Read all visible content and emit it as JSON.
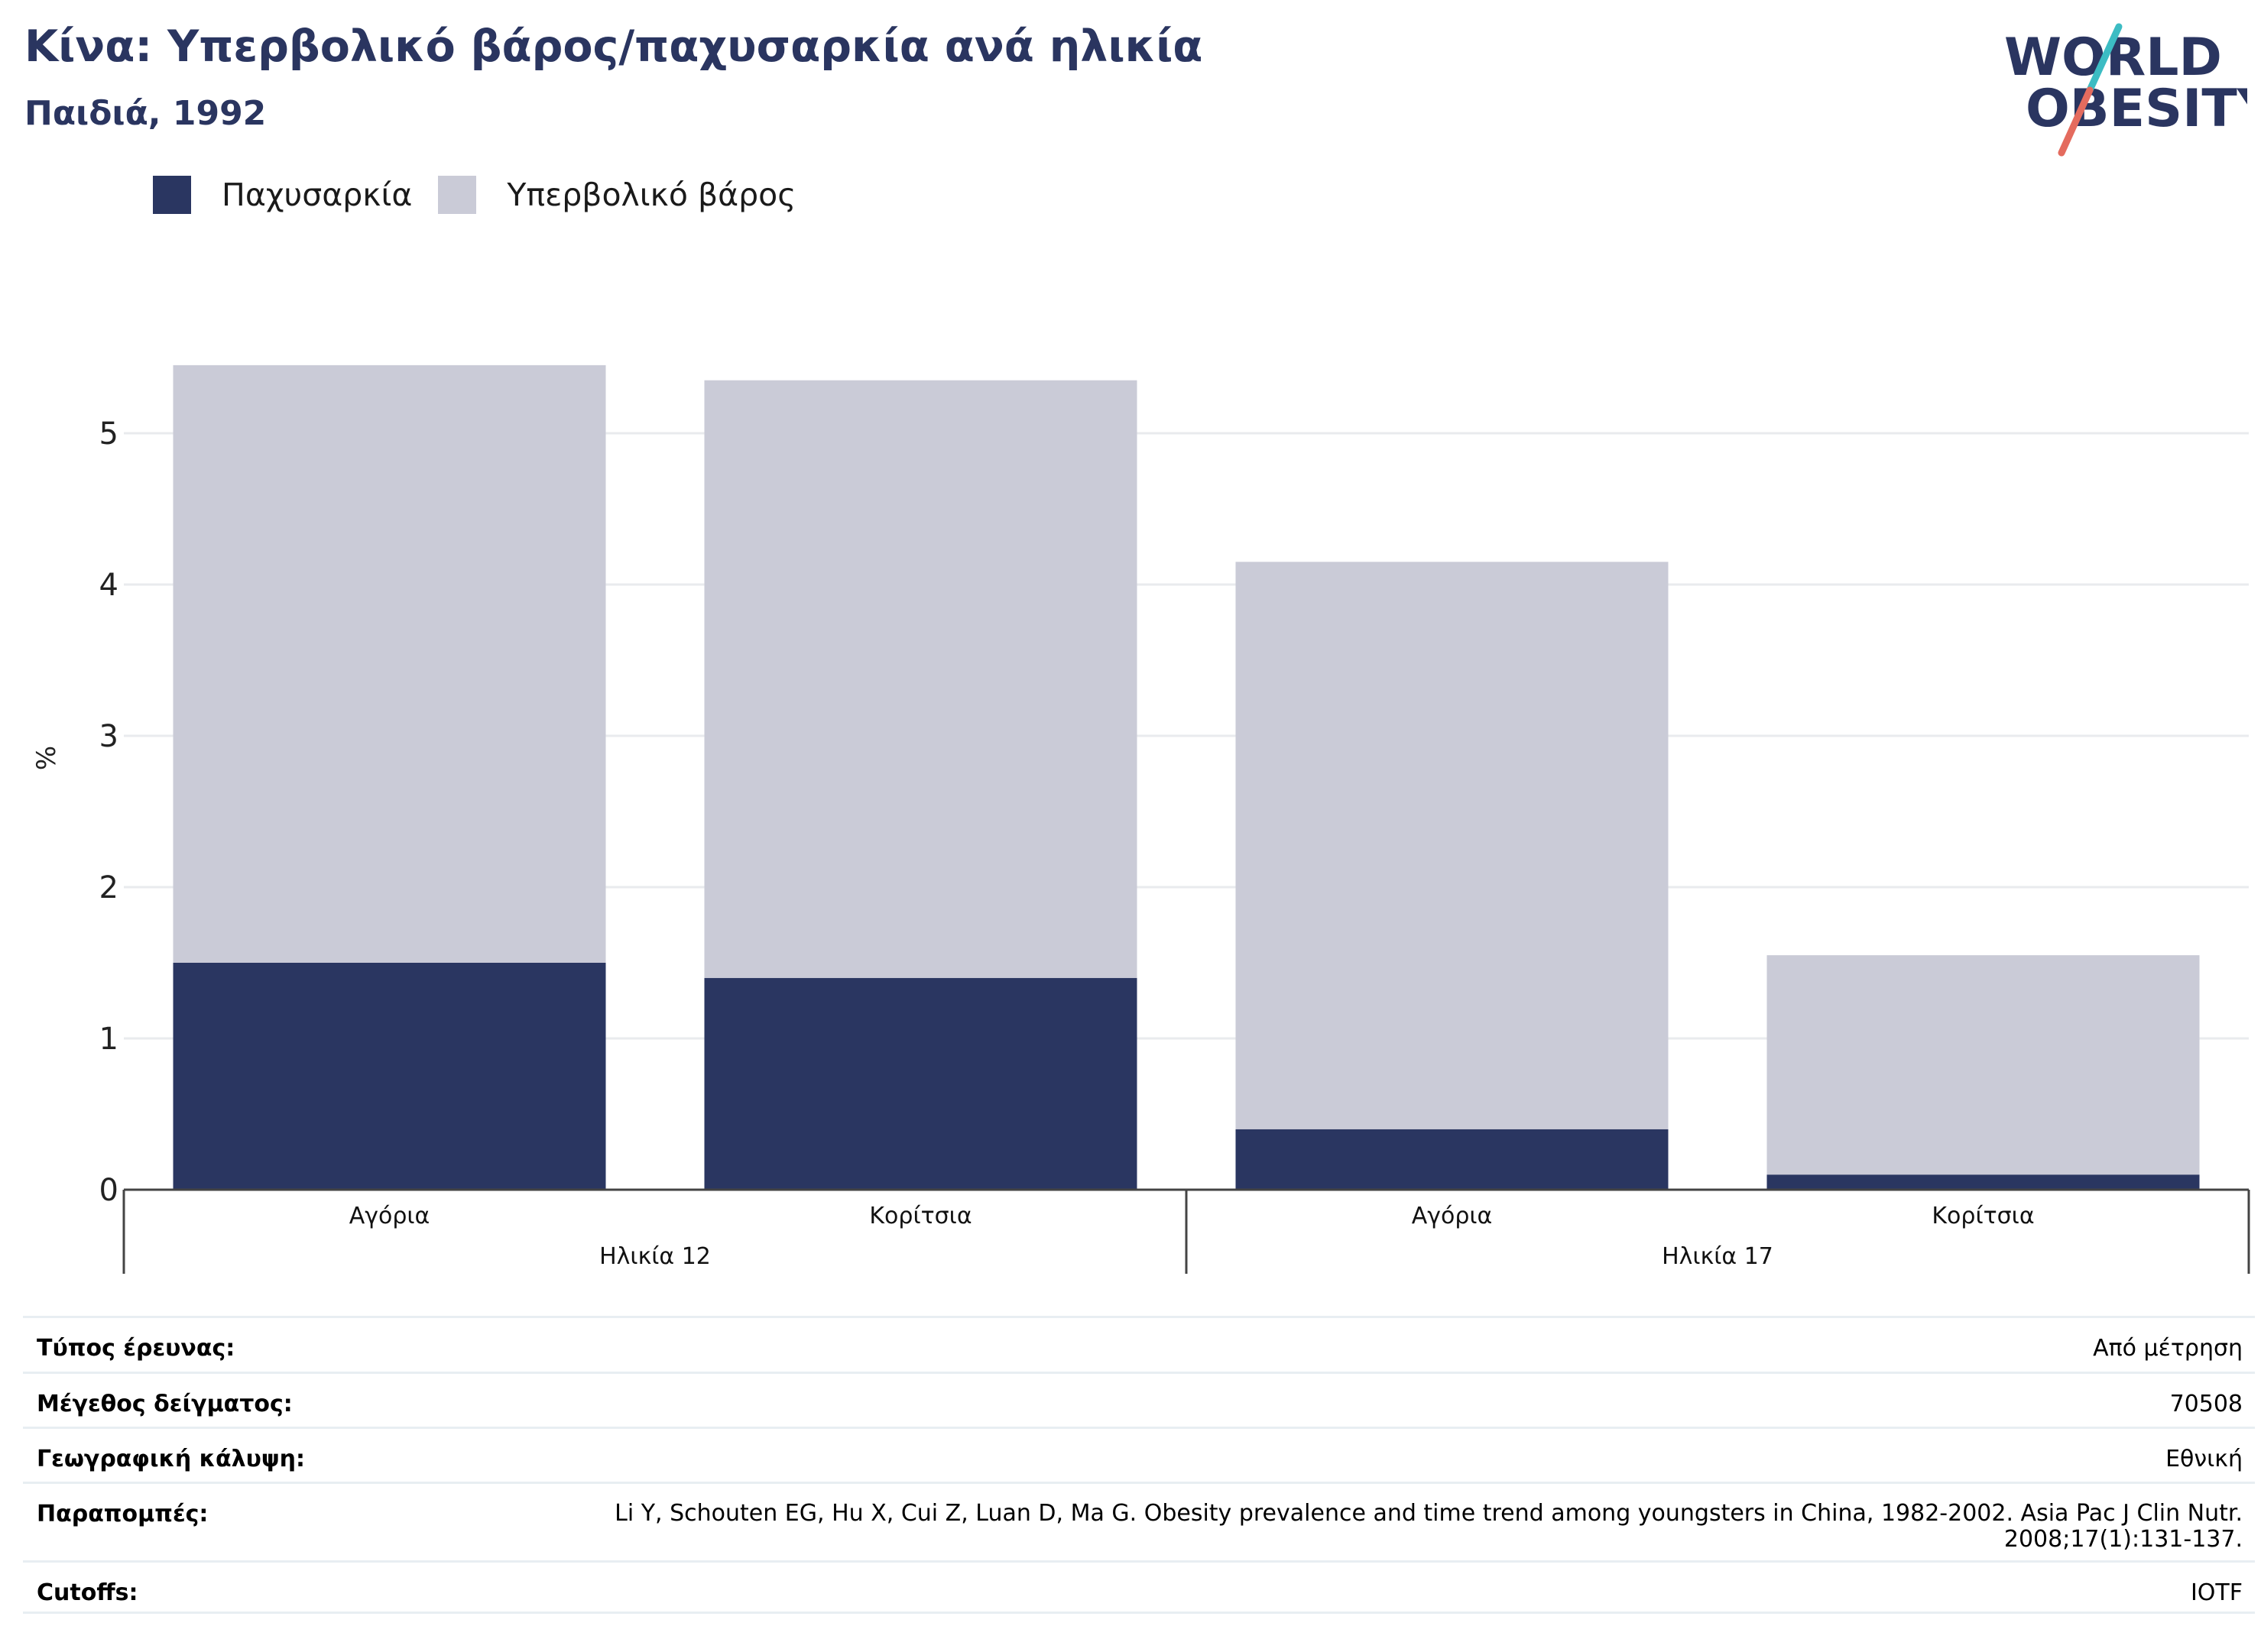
{
  "title": "Κίνα: Υπερβολικό βάρος/παχυσαρκία ανά ηλικία",
  "subtitle": "Παιδιά, 1992",
  "logo": {
    "line1": "WORLD",
    "line2": "OBESITY"
  },
  "colors": {
    "obesity": "#2a3661",
    "overweight": "#cacbd7",
    "grid": "#e9ebee",
    "axis": "#444444",
    "title": "#2a3560",
    "logo_slash_top": "#3cbcc3",
    "logo_slash_bottom": "#e46b5e"
  },
  "legend": [
    {
      "label": "Παχυσαρκία",
      "color": "#2a3661"
    },
    {
      "label": "Υπερβολικό βάρος",
      "color": "#cacbd7"
    }
  ],
  "chart_data": {
    "type": "bar",
    "stacked": true,
    "ylabel": "%",
    "ylim": [
      0,
      5.5
    ],
    "yticks": [
      0,
      1,
      2,
      3,
      4,
      5
    ],
    "grid": true,
    "categories": [
      "Αγόρια",
      "Κορίτσια",
      "Αγόρια",
      "Κορίτσια"
    ],
    "groups": [
      {
        "label": "Ηλικία 12",
        "categories": [
          "Αγόρια",
          "Κορίτσια"
        ]
      },
      {
        "label": "Ηλικία 17",
        "categories": [
          "Αγόρια",
          "Κορίτσια"
        ]
      }
    ],
    "series": [
      {
        "name": "Παχυσαρκία",
        "values": [
          1.5,
          1.4,
          0.4,
          0.1
        ]
      },
      {
        "name": "Υπερβολικό βάρος",
        "values": [
          3.95,
          3.95,
          3.75,
          1.45
        ]
      }
    ]
  },
  "meta": [
    {
      "key": "Τύπος έρευνας:",
      "value": "Από μέτρηση"
    },
    {
      "key": "Μέγεθος δείγματος:",
      "value": "70508"
    },
    {
      "key": "Γεωγραφική κάλυψη:",
      "value": "Εθνική"
    },
    {
      "key": "Παραπομπές:",
      "value": "Li Y, Schouten EG, Hu X, Cui Z, Luan D, Ma G. Obesity prevalence and time trend among youngsters in China, 1982-2002. Asia Pac J Clin Nutr. 2008;17(1):131-137."
    },
    {
      "key": "Cutoffs:",
      "value": "IOTF"
    }
  ]
}
